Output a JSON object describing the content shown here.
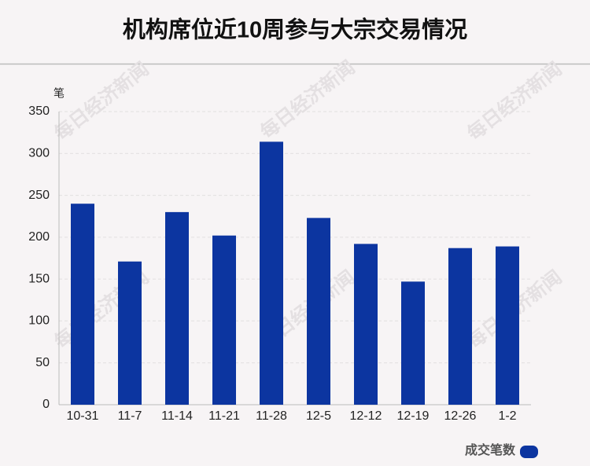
{
  "chart_data": {
    "type": "bar",
    "title": "机构席位近10周参与大宗交易情况",
    "y_label": "笔",
    "watermark": "每日经济新闻",
    "categories": [
      "10-31",
      "11-7",
      "11-14",
      "11-21",
      "11-28",
      "12-5",
      "12-12",
      "12-19",
      "12-26",
      "1-2"
    ],
    "series": [
      {
        "name": "成交笔数",
        "color": "#0c35a0",
        "values": [
          240,
          171,
          230,
          202,
          314,
          223,
          192,
          147,
          187,
          189
        ]
      }
    ],
    "ylim": [
      0,
      350
    ],
    "yticks": [
      0,
      50,
      100,
      150,
      200,
      250,
      300,
      350
    ],
    "grid": true,
    "legend": "bottom-right"
  }
}
